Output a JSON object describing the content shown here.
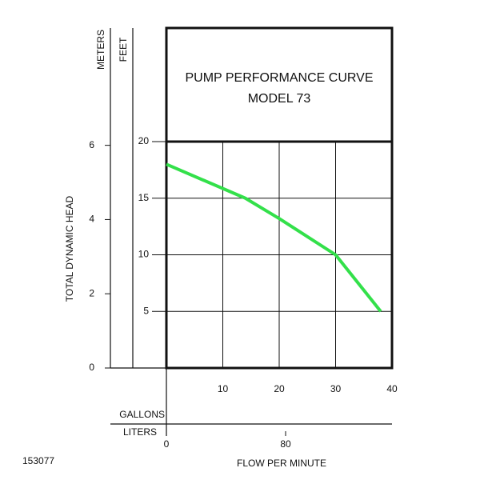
{
  "chart_data": {
    "type": "line",
    "title": "PUMP PERFORMANCE CURVE",
    "subtitle": "MODEL 73",
    "y_label": "FEET",
    "y2_label": "METERS",
    "y_axis_title": "TOTAL DYNAMIC HEAD",
    "x_label": "GALLONS",
    "x2_label": "LITERS",
    "x_axis_title": "FLOW PER MINUTE",
    "code": "153077",
    "x": [
      0,
      14,
      20,
      30,
      38
    ],
    "values": [
      18,
      15,
      13.2,
      10,
      5
    ],
    "color": "#33e04a",
    "xlim": [
      0,
      40
    ],
    "xticks": [
      10,
      20,
      30,
      40
    ],
    "x2lim": [
      0,
      151.4
    ],
    "x2ticks": [
      0,
      80
    ],
    "ylim": [
      0,
      20
    ],
    "yticks": [
      5,
      10,
      15,
      20
    ],
    "y2lim": [
      0,
      6.1
    ],
    "y2ticks": [
      0,
      2,
      4,
      6
    ],
    "grid": true
  }
}
